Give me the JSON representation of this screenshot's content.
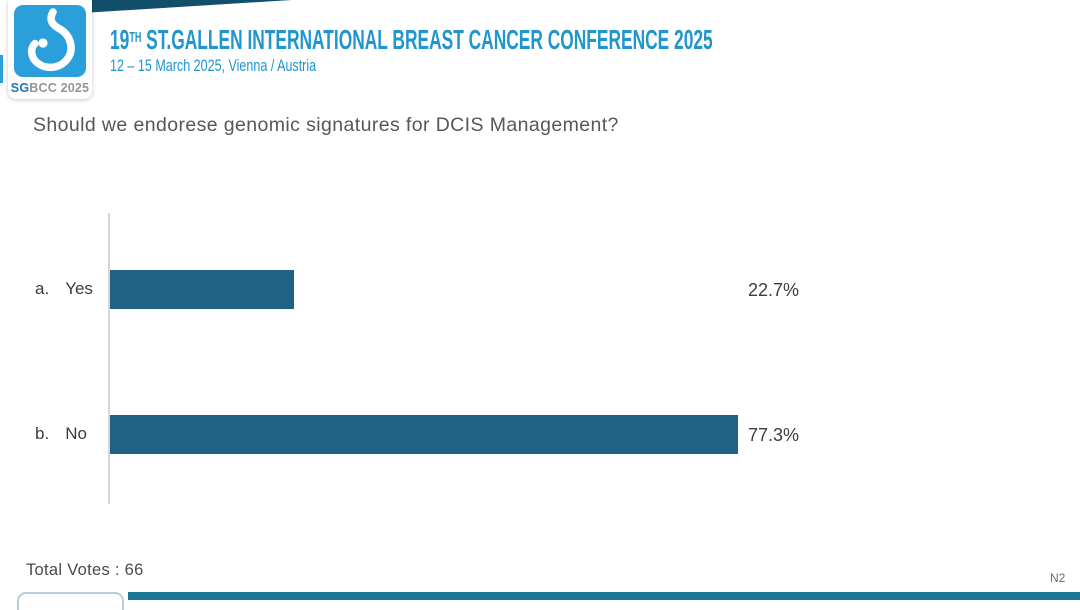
{
  "header": {
    "title_num": "19",
    "title_sup": "TH",
    "title_rest": " ST.GALLEN INTERNATIONAL BREAST CANCER CONFERENCE 2025",
    "subtitle": "12 – 15 March 2025, Vienna / Austria",
    "logo": {
      "sg": "SG",
      "bcc": "BCC 2025"
    }
  },
  "question": "Should we endorese genomic signatures for DCIS Management?",
  "chart_data": {
    "type": "bar",
    "orientation": "horizontal",
    "title": "Should we endorese genomic signatures for DCIS Management?",
    "option_prefixes": [
      "a.",
      "b."
    ],
    "categories": [
      "Yes",
      "No"
    ],
    "values": [
      22.7,
      77.3
    ],
    "value_labels": [
      "22.7%",
      "77.3%"
    ],
    "xlim": [
      0,
      100
    ],
    "gridlines": false,
    "legend": false,
    "total_votes": 66,
    "bar_color": "#1F6283"
  },
  "footer": {
    "total_votes": "Total Votes : 66",
    "slide_code": "N2"
  },
  "colors": {
    "title_blue": "#2095CE",
    "logo_blue": "#2B9FD9",
    "sg_blue": "#1B75BC",
    "bar_teal": "#1F6283",
    "wedge_navy": "#124F6B",
    "bottom_bar_teal": "#1C7795",
    "text_gray": "#575757"
  }
}
